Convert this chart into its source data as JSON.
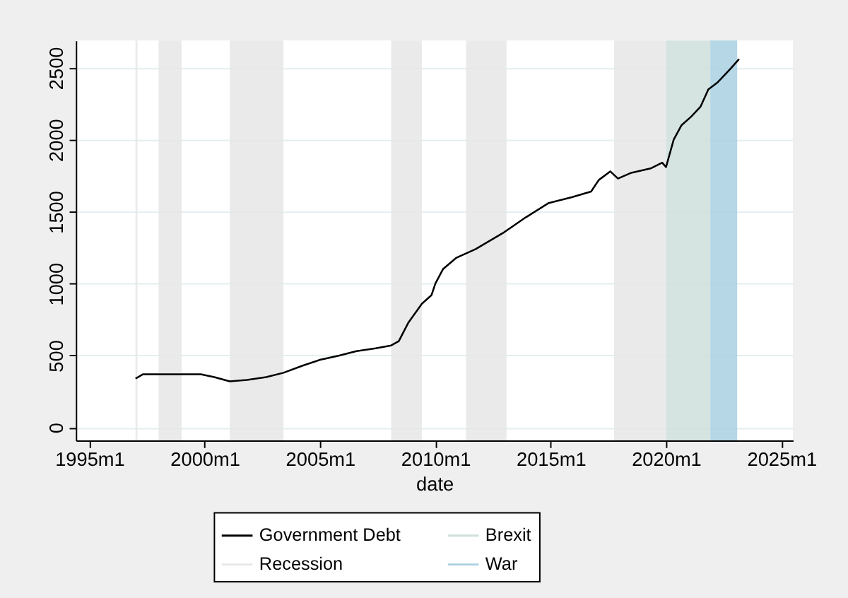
{
  "chart_data": {
    "type": "line",
    "xlabel": "date",
    "series": [
      {
        "name": "Government Debt",
        "color": "#000000",
        "x": [
          "1997-01",
          "1997-05",
          "1997-12",
          "1998-09",
          "1999-04",
          "1999-11",
          "2000-06",
          "2001-02",
          "2001-11",
          "2002-09",
          "2003-06",
          "2004-04",
          "2005-01",
          "2005-11",
          "2006-08",
          "2007-06",
          "2008-02",
          "2008-06",
          "2008-11",
          "2009-06",
          "2009-11",
          "2010-01",
          "2010-05",
          "2010-12",
          "2011-10",
          "2012-12",
          "2013-12",
          "2014-12",
          "2015-12",
          "2016-10",
          "2017-02",
          "2017-08",
          "2017-12",
          "2018-07",
          "2019-05",
          "2019-11",
          "2020-01",
          "2020-05",
          "2020-09",
          "2021-02",
          "2021-07",
          "2021-11",
          "2022-04",
          "2022-11",
          "2023-03"
        ],
        "values": [
          340,
          370,
          370,
          370,
          370,
          370,
          350,
          320,
          330,
          350,
          380,
          430,
          470,
          500,
          530,
          550,
          570,
          600,
          730,
          860,
          920,
          1000,
          1100,
          1180,
          1240,
          1350,
          1460,
          1560,
          1600,
          1640,
          1720,
          1780,
          1730,
          1770,
          1800,
          1840,
          1810,
          2000,
          2100,
          2160,
          2230,
          2350,
          2400,
          2500,
          2560
        ]
      }
    ],
    "bands": [
      {
        "axis": "x",
        "from": "1997-01",
        "to": "1997-02",
        "label": "Recession",
        "color": "#e6e6e6"
      },
      {
        "axis": "x",
        "from": "1998-01",
        "to": "1999-01",
        "color": "#e6e6e6"
      },
      {
        "axis": "x",
        "from": "2001-02",
        "to": "2003-06",
        "color": "#e6e6e6"
      },
      {
        "axis": "x",
        "from": "2008-02",
        "to": "2009-06",
        "color": "#e6e6e6"
      },
      {
        "axis": "x",
        "from": "2011-05",
        "to": "2013-02",
        "color": "#e6e6e6"
      },
      {
        "axis": "x",
        "from": "2017-10",
        "to": "2020-01",
        "color": "#e6e6e6"
      },
      {
        "axis": "x",
        "from": "2020-01",
        "to": "2021-12",
        "label": "Brexit",
        "color": "#cfdfdc"
      },
      {
        "axis": "x",
        "from": "2021-12",
        "to": "2023-02",
        "label": "War",
        "color": "#a9d0e2"
      }
    ],
    "xlim": [
      "1994-06",
      "2025-07"
    ],
    "ylim": [
      -90,
      2690
    ],
    "xticks": [
      {
        "value": "1995-01",
        "label": "1995m1"
      },
      {
        "value": "2000-01",
        "label": "2000m1"
      },
      {
        "value": "2005-01",
        "label": "2005m1"
      },
      {
        "value": "2010-01",
        "label": "2010m1"
      },
      {
        "value": "2015-01",
        "label": "2015m1"
      },
      {
        "value": "2020-01",
        "label": "2020m1"
      },
      {
        "value": "2025-01",
        "label": "2025m1"
      }
    ],
    "yticks": [
      0,
      500,
      1000,
      1500,
      2000,
      2500
    ],
    "grid": "y",
    "legend": "bottom",
    "line_style": "solid",
    "marker": "none"
  }
}
